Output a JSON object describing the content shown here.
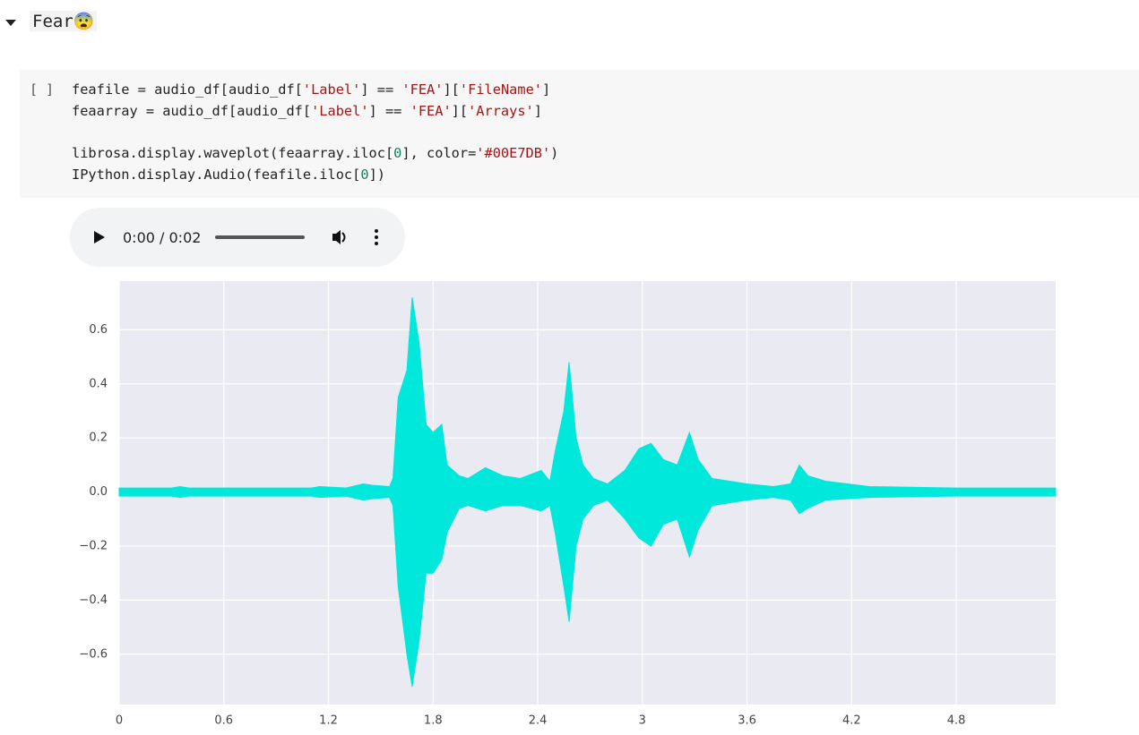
{
  "header": {
    "title": "Fear😨"
  },
  "cell": {
    "prompt": "[ ]",
    "code": [
      "feafile = audio_df[audio_df['Label'] == 'FEA']['FileName']",
      "feaarray = audio_df[audio_df['Label'] == 'FEA']['Arrays']",
      "",
      "librosa.display.waveplot(feaarray.iloc[0], color='#00E7DB')",
      "IPython.display.Audio(feafile.iloc[0])"
    ]
  },
  "audio": {
    "time": "0:00 / 0:02"
  },
  "chart_data": {
    "type": "area",
    "x": [
      0,
      0.3,
      0.35,
      0.4,
      0.8,
      1.1,
      1.15,
      1.3,
      1.4,
      1.45,
      1.55,
      1.57,
      1.6,
      1.65,
      1.68,
      1.72,
      1.76,
      1.8,
      1.85,
      1.88,
      1.95,
      2.0,
      2.1,
      2.2,
      2.3,
      2.42,
      2.47,
      2.5,
      2.55,
      2.58,
      2.62,
      2.66,
      2.72,
      2.8,
      2.9,
      2.98,
      3.05,
      3.12,
      3.2,
      3.27,
      3.32,
      3.4,
      3.5,
      3.6,
      3.75,
      3.85,
      3.9,
      3.95,
      4.05,
      4.3,
      4.8,
      5.37
    ],
    "series": [
      {
        "color": "#00E7DB",
        "values": [
          0.015,
          0.015,
          0.02,
          0.015,
          0.015,
          0.015,
          0.02,
          0.015,
          0.03,
          0.025,
          0.02,
          0.05,
          0.35,
          0.45,
          0.72,
          0.55,
          0.25,
          0.22,
          0.25,
          0.1,
          0.06,
          0.05,
          0.09,
          0.06,
          0.05,
          0.08,
          0.04,
          0.15,
          0.3,
          0.48,
          0.2,
          0.1,
          0.05,
          0.03,
          0.08,
          0.16,
          0.18,
          0.12,
          0.1,
          0.22,
          0.12,
          0.05,
          0.04,
          0.03,
          0.02,
          0.03,
          0.1,
          0.06,
          0.04,
          0.02,
          0.015,
          0.015
        ]
      },
      {
        "color": "#00E7DB",
        "values": [
          -0.015,
          -0.015,
          -0.02,
          -0.015,
          -0.015,
          -0.015,
          -0.02,
          -0.015,
          -0.03,
          -0.025,
          -0.02,
          -0.05,
          -0.35,
          -0.6,
          -0.72,
          -0.55,
          -0.3,
          -0.3,
          -0.25,
          -0.15,
          -0.06,
          -0.05,
          -0.07,
          -0.05,
          -0.05,
          -0.07,
          -0.05,
          -0.15,
          -0.35,
          -0.48,
          -0.2,
          -0.1,
          -0.05,
          -0.03,
          -0.1,
          -0.17,
          -0.2,
          -0.12,
          -0.1,
          -0.24,
          -0.14,
          -0.05,
          -0.04,
          -0.03,
          -0.02,
          -0.03,
          -0.08,
          -0.06,
          -0.03,
          -0.02,
          -0.015,
          -0.015
        ]
      }
    ],
    "xlim": [
      0,
      5.37
    ],
    "ylim": [
      -0.786,
      0.78
    ],
    "xticks": [
      0,
      0.6,
      1.2,
      1.8,
      2.4,
      3,
      3.6,
      4.2,
      4.8
    ],
    "yticks": [
      {
        "value": -0.6,
        "label": "−0.6"
      },
      {
        "value": -0.4,
        "label": "−0.4"
      },
      {
        "value": -0.2,
        "label": "−0.2"
      },
      {
        "value": 0,
        "label": "0.0"
      },
      0.2,
      0.4,
      0.6
    ],
    "grid": true,
    "background": "#eaeaf2"
  }
}
